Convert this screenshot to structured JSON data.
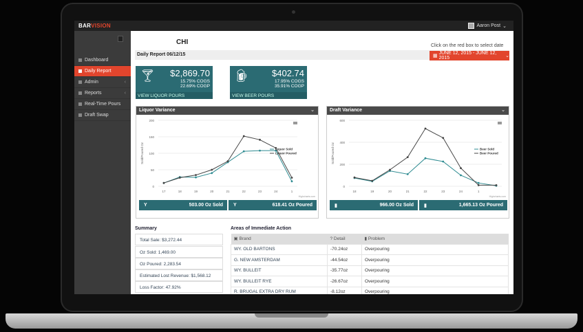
{
  "app": {
    "logo_a": "BAR",
    "logo_b": "VISION",
    "user": "Aaron Post"
  },
  "sidebar": {
    "items": [
      {
        "label": "Dashboard",
        "icon": "home-icon"
      },
      {
        "label": "Daily Report",
        "icon": "report-icon",
        "active": true
      },
      {
        "label": "Admin",
        "icon": "admin-icon"
      },
      {
        "label": "Reports",
        "icon": "bar-chart-icon"
      },
      {
        "label": "Real-Time Pours",
        "icon": "drop-icon"
      },
      {
        "label": "Draft Swap",
        "icon": "beer-icon"
      }
    ]
  },
  "header": {
    "location": "CHI",
    "report": "Daily Report 06/12/15",
    "hint": "Click on the red box to select date",
    "date_range": "JUNE 12, 2015 - JUNE 12, 2015"
  },
  "cards": [
    {
      "amount": "$2,869.70",
      "cogs": "15.75% COGS",
      "cogp": "22.69% COGP",
      "link": "VIEW LIQUOR POURS"
    },
    {
      "amount": "$402.74",
      "cogs": "17.95% COGS",
      "cogp": "35.91% COGP",
      "link": "VIEW BEER POURS"
    }
  ],
  "colors": {
    "accent": "#e2452d",
    "teal": "#2b6b73",
    "sold_line": "#2e8b91",
    "poured_line": "#444444"
  },
  "chart_data": [
    {
      "type": "line",
      "title": "Liquor Variance",
      "ylabel": "Sold/Poured Oz",
      "ylim": [
        0,
        200
      ],
      "yticks": [
        0,
        50,
        100,
        150,
        200
      ],
      "categories": [
        "17",
        "18",
        "19",
        "20",
        "21",
        "22",
        "23",
        "24",
        "1"
      ],
      "series": [
        {
          "name": "Liquor Sold",
          "values": [
            10,
            28,
            27,
            40,
            73,
            106,
            108,
            108,
            15
          ]
        },
        {
          "name": "Liquor Poured",
          "values": [
            10,
            26,
            34,
            50,
            76,
            152,
            141,
            116,
            26
          ]
        }
      ],
      "credit": "Highcharts.com",
      "stats": [
        "503.00 Oz Sold",
        "618.41 Oz Poured"
      ]
    },
    {
      "type": "line",
      "title": "Draft Variance",
      "ylabel": "Sold/Poured Oz",
      "ylim": [
        0,
        600
      ],
      "yticks": [
        0,
        200,
        400,
        600
      ],
      "categories": [
        "18",
        "19",
        "20",
        "21",
        "22",
        "23",
        "24",
        "1",
        ""
      ],
      "series": [
        {
          "name": "Beer Sold",
          "values": [
            75,
            45,
            140,
            110,
            255,
            225,
            100,
            30,
            5
          ]
        },
        {
          "name": "Beer Poured",
          "values": [
            80,
            50,
            150,
            265,
            525,
            440,
            165,
            10,
            10
          ]
        }
      ],
      "credit": "Highcharts.com",
      "stats": [
        "966.00 Oz Sold",
        "1,665.13 Oz Poured"
      ]
    }
  ],
  "summary": {
    "title": "Summary",
    "items": [
      "Total Sale: $3,272.44",
      "Oz Sold: 1,469.00",
      "Oz Poured: 2,283.54",
      "Estimated Lost Revenue: $1,568.12",
      "Loss Factor: 47.92%"
    ]
  },
  "actions": {
    "title": "Areas of Immediate Action",
    "columns": [
      "Brand",
      "Detail",
      "Problem"
    ],
    "rows": [
      [
        "WY. OLD BARTONS",
        "-70.24oz",
        "Overpouring"
      ],
      [
        "G. NEW AMSTERDAM",
        "-44.54oz",
        "Overpouring"
      ],
      [
        "WY. BULLEIT",
        "-35.77oz",
        "Overpouring"
      ],
      [
        "WY. BULLEIT RYE",
        "-26.67oz",
        "Overpouring"
      ],
      [
        "R. BRUGAL EXTRA DRY RUM",
        "-8.12oz",
        "Overpouring"
      ]
    ]
  }
}
